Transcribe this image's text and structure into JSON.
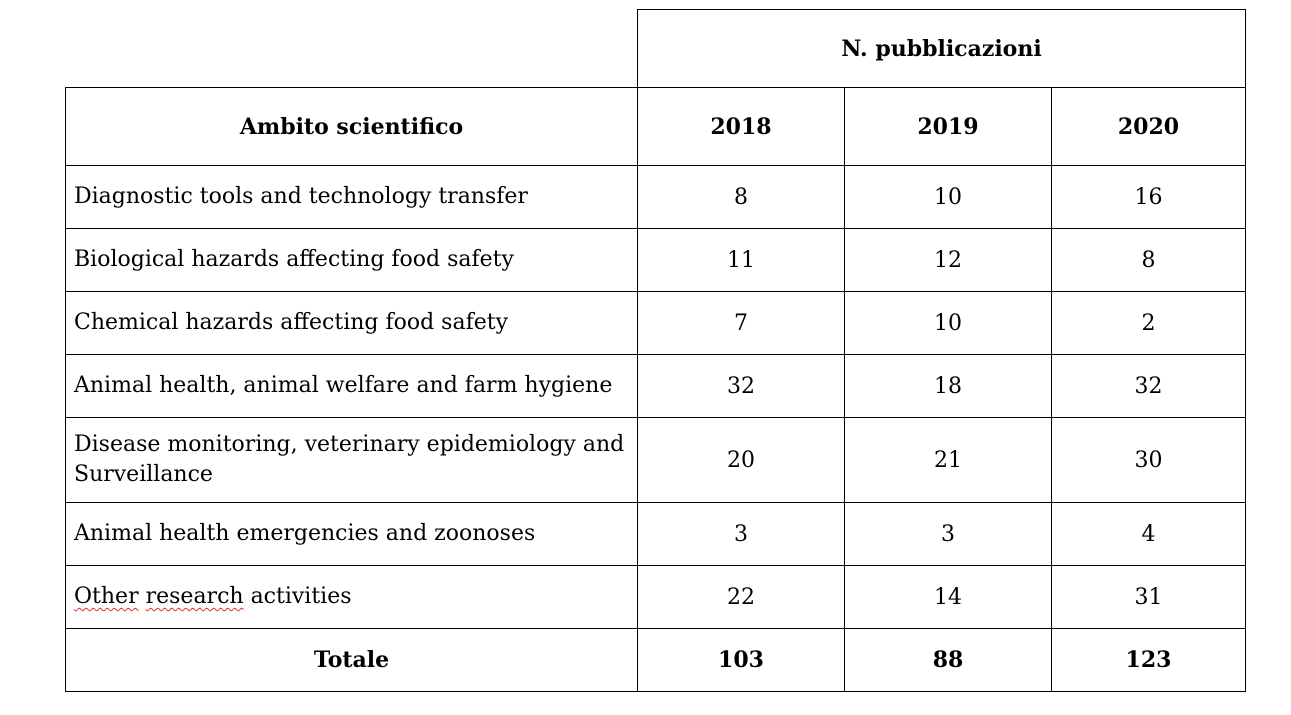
{
  "table": {
    "group_header": "N. pubblicazioni",
    "row_header": "Ambito scientifico",
    "years": [
      "2018",
      "2019",
      "2020"
    ],
    "rows": [
      {
        "label": "Diagnostic tools and technology transfer",
        "values": [
          "8",
          "10",
          "16"
        ]
      },
      {
        "label": "Biological hazards affecting food safety",
        "values": [
          "11",
          "12",
          "8"
        ]
      },
      {
        "label": "Chemical hazards affecting food safety",
        "values": [
          "7",
          "10",
          "2"
        ]
      },
      {
        "label": "Animal health, animal welfare and farm hygiene",
        "values": [
          "32",
          "18",
          "32"
        ]
      },
      {
        "label_line1": "Disease monitoring, veterinary epidemiology and",
        "label_line2": "Surveillance",
        "values": [
          "20",
          "21",
          "30"
        ]
      },
      {
        "label": "Animal health emergencies and zoonoses",
        "values": [
          "3",
          "3",
          "4"
        ]
      },
      {
        "label_word1": "Other",
        "label_word2": "research",
        "label_rest": "activities",
        "values": [
          "22",
          "14",
          "31"
        ]
      }
    ],
    "total": {
      "label": "Totale",
      "values": [
        "103",
        "88",
        "123"
      ]
    }
  },
  "colors": {
    "spellcheck_underline": "#d9302c",
    "border": "#000000"
  }
}
